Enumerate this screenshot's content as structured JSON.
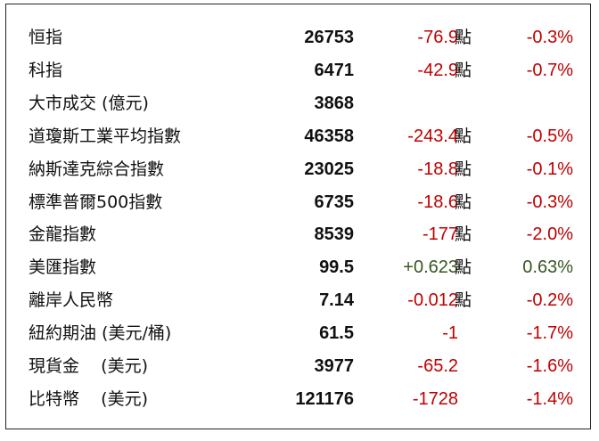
{
  "table": {
    "colors": {
      "down": "#c00000",
      "up": "#375623"
    },
    "rows": [
      {
        "name": "恒指",
        "value": "26753",
        "change": "-76.9",
        "unit": "點",
        "percent": "-0.3%",
        "trend": "down"
      },
      {
        "name": "科指",
        "value": "6471",
        "change": "-42.9",
        "unit": "點",
        "percent": "-0.7%",
        "trend": "down"
      },
      {
        "name": "大市成交 (億元)",
        "value": "3868"
      },
      {
        "name": "道瓊斯工業平均指數",
        "value": "46358",
        "change": "-243.4",
        "unit": "點",
        "percent": "-0.5%",
        "trend": "down"
      },
      {
        "name": "納斯達克綜合指數",
        "value": "23025",
        "change": "-18.8",
        "unit": "點",
        "percent": "-0.1%",
        "trend": "down"
      },
      {
        "name": "標準普爾500指數",
        "value": "6735",
        "change": "-18.6",
        "unit": "點",
        "percent": "-0.3%",
        "trend": "down"
      },
      {
        "name": "金龍指數",
        "value": "8539",
        "change": "-177",
        "unit": "點",
        "percent": "-2.0%",
        "trend": "down"
      },
      {
        "name": "美匯指數",
        "value": "99.5",
        "change": "+0.623",
        "unit": "點",
        "percent": "0.63%",
        "trend": "up"
      },
      {
        "name": "離岸人民幣",
        "value": "7.14",
        "change": "-0.012",
        "unit": "點",
        "percent": "-0.2%",
        "trend": "down"
      },
      {
        "name": "紐約期油 (美元/桶)",
        "value": "61.5",
        "change": "-1",
        "percent": "-1.7%",
        "trend": "down"
      },
      {
        "name": "現貨金    (美元)",
        "value": "3977",
        "change": "-65.2",
        "percent": "-1.6%",
        "trend": "down"
      },
      {
        "name": "比特幣    (美元)",
        "value": "121176",
        "change": "-1728",
        "percent": "-1.4%",
        "trend": "down"
      }
    ]
  }
}
